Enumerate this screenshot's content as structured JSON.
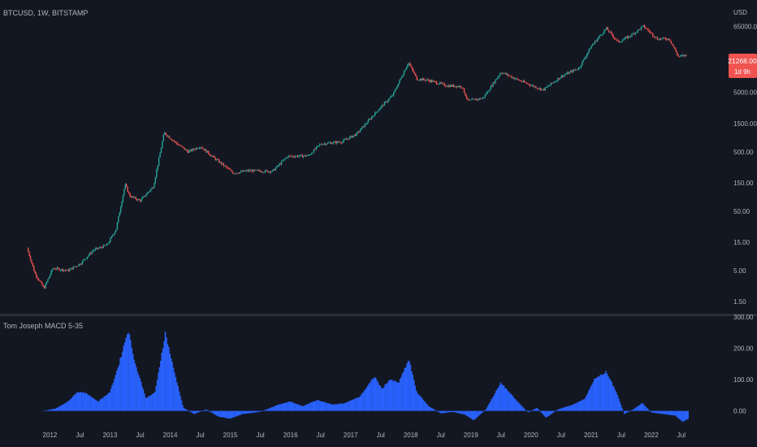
{
  "header": {
    "symbol": "BTCUSD, 1W, BITSTAMP",
    "currency": "USD"
  },
  "price_badge": {
    "price": "21268.00",
    "countdown": "1d 9h",
    "color": "#f05350"
  },
  "colors": {
    "bg": "#131722",
    "up": "#26a69a",
    "down": "#ef5350",
    "hist": "#2962ff",
    "axis_text": "#b2b5be",
    "separator": "#2a2e39"
  },
  "chart_data": [
    {
      "type": "candlestick",
      "title": "BTCUSD, 1W, BITSTAMP",
      "y_scale": "log",
      "ylim": [
        1,
        90000
      ],
      "y_ticks": [
        65000,
        5000,
        1500,
        500,
        150,
        50,
        15,
        5,
        1.5
      ],
      "y_tick_labels": [
        "65000.00",
        "5000.00",
        "1500.00",
        "500.00",
        "150.00",
        "50.00",
        "15.00",
        "5.00",
        "1.50"
      ],
      "approx_weekly_close_path": [
        {
          "t": 2011.62,
          "price": 12
        },
        {
          "t": 2011.75,
          "price": 4.5
        },
        {
          "t": 2011.9,
          "price": 2.5
        },
        {
          "t": 2012.05,
          "price": 5.5
        },
        {
          "t": 2012.3,
          "price": 5
        },
        {
          "t": 2012.5,
          "price": 6.5
        },
        {
          "t": 2012.72,
          "price": 11
        },
        {
          "t": 2012.95,
          "price": 13.5
        },
        {
          "t": 2013.1,
          "price": 25
        },
        {
          "t": 2013.25,
          "price": 140
        },
        {
          "t": 2013.33,
          "price": 90
        },
        {
          "t": 2013.5,
          "price": 75
        },
        {
          "t": 2013.72,
          "price": 130
        },
        {
          "t": 2013.9,
          "price": 1050
        },
        {
          "t": 2014.1,
          "price": 700
        },
        {
          "t": 2014.3,
          "price": 500
        },
        {
          "t": 2014.5,
          "price": 620
        },
        {
          "t": 2014.75,
          "price": 380
        },
        {
          "t": 2015.05,
          "price": 220
        },
        {
          "t": 2015.3,
          "price": 240
        },
        {
          "t": 2015.7,
          "price": 235
        },
        {
          "t": 2015.95,
          "price": 420
        },
        {
          "t": 2016.3,
          "price": 430
        },
        {
          "t": 2016.5,
          "price": 680
        },
        {
          "t": 2016.85,
          "price": 740
        },
        {
          "t": 2017.1,
          "price": 1000
        },
        {
          "t": 2017.45,
          "price": 2500
        },
        {
          "t": 2017.7,
          "price": 4500
        },
        {
          "t": 2017.96,
          "price": 16000
        },
        {
          "t": 2018.1,
          "price": 8500
        },
        {
          "t": 2018.3,
          "price": 8000
        },
        {
          "t": 2018.6,
          "price": 6500
        },
        {
          "t": 2018.85,
          "price": 6300
        },
        {
          "t": 2018.95,
          "price": 3600
        },
        {
          "t": 2019.2,
          "price": 4000
        },
        {
          "t": 2019.5,
          "price": 11000
        },
        {
          "t": 2019.8,
          "price": 8000
        },
        {
          "t": 2020.2,
          "price": 5500
        },
        {
          "t": 2020.5,
          "price": 9300
        },
        {
          "t": 2020.8,
          "price": 13000
        },
        {
          "t": 2021.0,
          "price": 30000
        },
        {
          "t": 2021.25,
          "price": 60000
        },
        {
          "t": 2021.45,
          "price": 35000
        },
        {
          "t": 2021.65,
          "price": 45000
        },
        {
          "t": 2021.87,
          "price": 65000
        },
        {
          "t": 2022.1,
          "price": 40000
        },
        {
          "t": 2022.3,
          "price": 40000
        },
        {
          "t": 2022.45,
          "price": 20000
        },
        {
          "t": 2022.6,
          "price": 21268
        }
      ]
    },
    {
      "type": "bar",
      "title": "Tom Joseph MACD 5-35",
      "ylim": [
        -40,
        300
      ],
      "y_ticks": [
        300,
        200,
        100,
        0
      ],
      "y_tick_labels": [
        "300.00",
        "200.00",
        "100.00",
        "0.00"
      ],
      "approx_histogram_path": [
        {
          "t": 2011.9,
          "v": 0
        },
        {
          "t": 2012.1,
          "v": 8
        },
        {
          "t": 2012.3,
          "v": 30
        },
        {
          "t": 2012.45,
          "v": 60
        },
        {
          "t": 2012.6,
          "v": 58
        },
        {
          "t": 2012.8,
          "v": 30
        },
        {
          "t": 2013.0,
          "v": 60
        },
        {
          "t": 2013.15,
          "v": 150
        },
        {
          "t": 2013.3,
          "v": 260
        },
        {
          "t": 2013.42,
          "v": 150
        },
        {
          "t": 2013.6,
          "v": 40
        },
        {
          "t": 2013.75,
          "v": 60
        },
        {
          "t": 2013.92,
          "v": 250
        },
        {
          "t": 2014.05,
          "v": 140
        },
        {
          "t": 2014.22,
          "v": 10
        },
        {
          "t": 2014.4,
          "v": -10
        },
        {
          "t": 2014.6,
          "v": 5
        },
        {
          "t": 2014.8,
          "v": -18
        },
        {
          "t": 2015.0,
          "v": -25
        },
        {
          "t": 2015.2,
          "v": -10
        },
        {
          "t": 2015.5,
          "v": -3
        },
        {
          "t": 2015.8,
          "v": 20
        },
        {
          "t": 2016.0,
          "v": 30
        },
        {
          "t": 2016.2,
          "v": 15
        },
        {
          "t": 2016.45,
          "v": 35
        },
        {
          "t": 2016.7,
          "v": 20
        },
        {
          "t": 2016.9,
          "v": 25
        },
        {
          "t": 2017.15,
          "v": 45
        },
        {
          "t": 2017.4,
          "v": 110
        },
        {
          "t": 2017.52,
          "v": 70
        },
        {
          "t": 2017.65,
          "v": 100
        },
        {
          "t": 2017.8,
          "v": 90
        },
        {
          "t": 2017.97,
          "v": 165
        },
        {
          "t": 2018.1,
          "v": 60
        },
        {
          "t": 2018.3,
          "v": 15
        },
        {
          "t": 2018.5,
          "v": -8
        },
        {
          "t": 2018.7,
          "v": -3
        },
        {
          "t": 2018.9,
          "v": -12
        },
        {
          "t": 2019.05,
          "v": -30
        },
        {
          "t": 2019.25,
          "v": 5
        },
        {
          "t": 2019.5,
          "v": 90
        },
        {
          "t": 2019.75,
          "v": 35
        },
        {
          "t": 2019.95,
          "v": -5
        },
        {
          "t": 2020.1,
          "v": 10
        },
        {
          "t": 2020.25,
          "v": -22
        },
        {
          "t": 2020.45,
          "v": 5
        },
        {
          "t": 2020.7,
          "v": 20
        },
        {
          "t": 2020.9,
          "v": 40
        },
        {
          "t": 2021.05,
          "v": 100
        },
        {
          "t": 2021.25,
          "v": 125
        },
        {
          "t": 2021.42,
          "v": 60
        },
        {
          "t": 2021.55,
          "v": -10
        },
        {
          "t": 2021.7,
          "v": 5
        },
        {
          "t": 2021.85,
          "v": 25
        },
        {
          "t": 2022.0,
          "v": -5
        },
        {
          "t": 2022.2,
          "v": -10
        },
        {
          "t": 2022.4,
          "v": -15
        },
        {
          "t": 2022.52,
          "v": -35
        },
        {
          "t": 2022.62,
          "v": -25
        }
      ]
    }
  ],
  "x_axis": {
    "labels": [
      "2012",
      "Jul",
      "2013",
      "Jul",
      "2014",
      "Jul",
      "2015",
      "Jul",
      "2016",
      "Jul",
      "2017",
      "Jul",
      "2018",
      "Jul",
      "2019",
      "Jul",
      "2020",
      "Jul",
      "2021",
      "Jul",
      "2022",
      "Jul"
    ],
    "positions_t": [
      2012.0,
      2012.5,
      2013.0,
      2013.5,
      2014.0,
      2014.5,
      2015.0,
      2015.5,
      2016.0,
      2016.5,
      2017.0,
      2017.5,
      2018.0,
      2018.5,
      2019.0,
      2019.5,
      2020.0,
      2020.5,
      2021.0,
      2021.5,
      2022.0,
      2022.5
    ],
    "range_t": [
      2011.17,
      2023.19
    ]
  }
}
